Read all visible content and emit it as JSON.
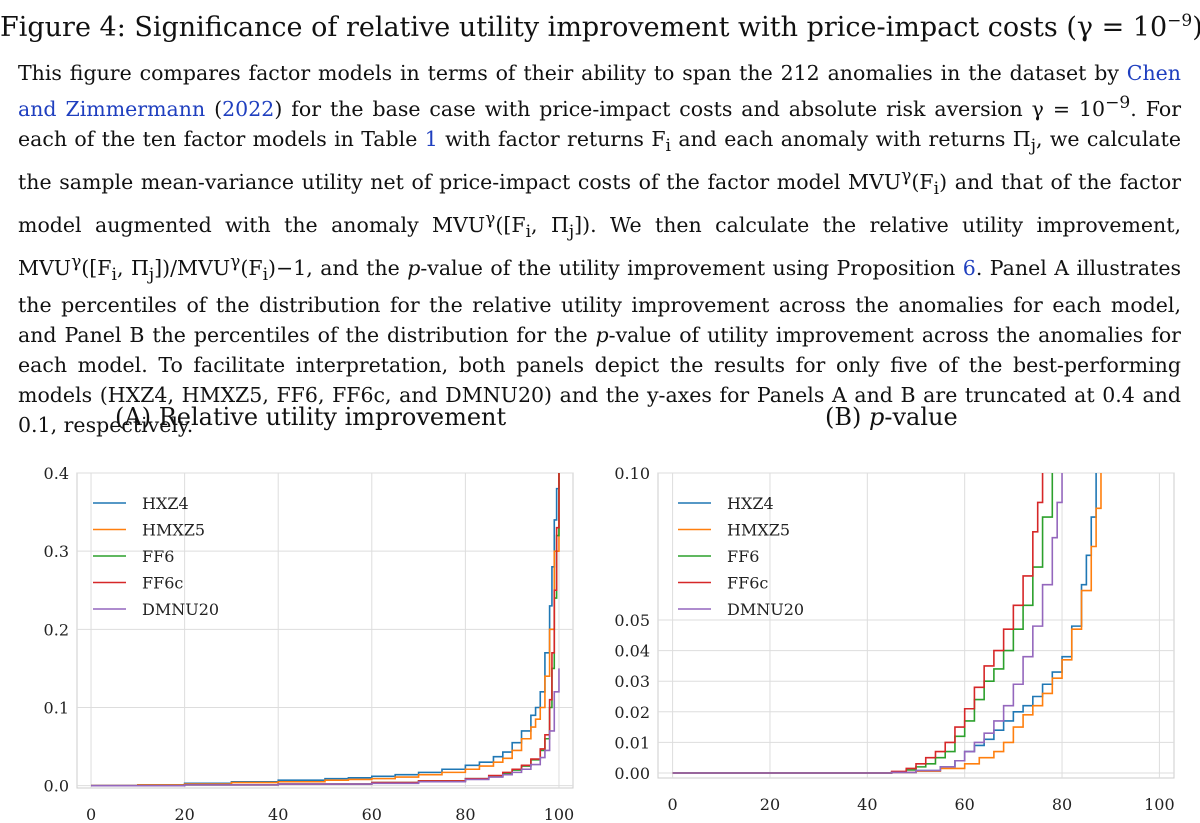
{
  "figure": {
    "title_prefix": "Figure 4: Significance of relative utility improvement with price-impact costs (γ = 10",
    "title_exp": "−9",
    "title_suffix": ")"
  },
  "caption": {
    "p1": "This figure compares factor models in terms of their ability to span the 212 anomalies in the dataset by ",
    "link_authors": "Chen and Zimmermann",
    "p2": " (",
    "link_year": "2022",
    "p3": ") for the base case with price-impact costs and absolute risk aversion γ = 10",
    "exp": "−9",
    "p4": ". For each of the ten factor models in Table ",
    "link_table": "1",
    "p5": " with factor returns F",
    "p6": " and each anomaly with returns Π",
    "p7": ", we calculate the sample mean-variance utility net of price-impact costs of the factor model MVU",
    "p8": "(F",
    "p9": ") and that of the factor model augmented with the anomaly MVU",
    "p10": "([F",
    "p11": ", Π",
    "p12": "]). We then calculate the relative utility improvement, MVU",
    "p13": "([F",
    "p14": ", Π",
    "p15": "])/MVU",
    "p16": "(F",
    "p17": ")−1, and the ",
    "p_italic": "p",
    "p18": "-value of the utility improvement using Proposition ",
    "link_prop": "6",
    "p19": ". Panel A illustrates the percentiles of the distribution for the relative utility improvement across the anomalies for each model, and Panel B the percentiles of the distribution for the ",
    "p_italic2": "p",
    "p20": "-value of utility improvement across the anomalies for each model. To facilitate interpretation, both panels depict the results for only five of the best-performing models (HXZ4, HMXZ5, FF6, FF6c, and DMNU20) and the y-axes for Panels A and B are truncated at 0.4 and 0.1, respectively.",
    "gamma_sup": "γ",
    "sub_i": "i",
    "sub_j": "j"
  },
  "panels": {
    "a_title": "(A) Relative utility improvement",
    "b_title_prefix": "(B) ",
    "b_title_p": "p",
    "b_title_suffix": "-value"
  },
  "chart_data": [
    {
      "type": "line",
      "panel": "A",
      "xlim": [
        -3,
        103
      ],
      "ylim": [
        -0.003,
        0.4
      ],
      "xticks": [
        0,
        20,
        40,
        60,
        80,
        100
      ],
      "yticks": [
        0.0,
        0.1,
        0.2,
        0.3,
        0.4
      ],
      "ytick_labels": [
        "0.0",
        "0.1",
        "0.2",
        "0.3",
        "0.4"
      ],
      "grid": true,
      "legend": "top-left",
      "series": [
        {
          "name": "HXZ4",
          "color": "#1f77b4",
          "x": [
            0,
            10,
            20,
            30,
            40,
            50,
            55,
            60,
            65,
            70,
            75,
            80,
            83,
            86,
            88,
            90,
            92,
            94,
            95,
            96,
            97,
            98,
            98.5,
            99,
            99.5,
            100
          ],
          "y": [
            0,
            0.001,
            0.003,
            0.005,
            0.007,
            0.009,
            0.01,
            0.012,
            0.014,
            0.017,
            0.021,
            0.026,
            0.03,
            0.037,
            0.043,
            0.055,
            0.07,
            0.09,
            0.1,
            0.12,
            0.17,
            0.23,
            0.28,
            0.34,
            0.38,
            0.4
          ]
        },
        {
          "name": "HMXZ5",
          "color": "#ff7f0e",
          "x": [
            0,
            10,
            20,
            30,
            40,
            50,
            55,
            60,
            65,
            70,
            75,
            80,
            83,
            86,
            88,
            90,
            92,
            94,
            95,
            96,
            97,
            98,
            99,
            100
          ],
          "y": [
            0,
            0.001,
            0.002,
            0.004,
            0.005,
            0.007,
            0.008,
            0.009,
            0.011,
            0.014,
            0.017,
            0.021,
            0.025,
            0.03,
            0.035,
            0.045,
            0.06,
            0.075,
            0.085,
            0.1,
            0.14,
            0.2,
            0.3,
            0.4
          ]
        },
        {
          "name": "FF6",
          "color": "#2ca02c",
          "x": [
            0,
            20,
            40,
            60,
            70,
            80,
            85,
            88,
            90,
            92,
            94,
            96,
            97,
            98,
            98.5,
            99,
            99.5,
            100
          ],
          "y": [
            0,
            0.001,
            0.002,
            0.004,
            0.006,
            0.009,
            0.012,
            0.016,
            0.02,
            0.025,
            0.033,
            0.045,
            0.06,
            0.1,
            0.15,
            0.24,
            0.32,
            0.4
          ]
        },
        {
          "name": "FF6c",
          "color": "#d62728",
          "x": [
            0,
            20,
            40,
            60,
            70,
            80,
            85,
            88,
            90,
            92,
            94,
            96,
            97,
            98,
            98.5,
            99,
            99.5,
            100
          ],
          "y": [
            0,
            0.001,
            0.002,
            0.004,
            0.006,
            0.009,
            0.013,
            0.017,
            0.021,
            0.026,
            0.034,
            0.047,
            0.065,
            0.11,
            0.17,
            0.25,
            0.33,
            0.4
          ]
        },
        {
          "name": "DMNU20",
          "color": "#9467bd",
          "x": [
            0,
            20,
            40,
            60,
            70,
            80,
            85,
            88,
            90,
            92,
            94,
            96,
            97,
            98,
            99,
            100
          ],
          "y": [
            0,
            0.001,
            0.002,
            0.003,
            0.005,
            0.008,
            0.011,
            0.014,
            0.017,
            0.021,
            0.027,
            0.036,
            0.045,
            0.07,
            0.12,
            0.15
          ]
        }
      ]
    },
    {
      "type": "line",
      "panel": "B",
      "xlim": [
        -3,
        103
      ],
      "ylim": [
        -0.001,
        0.1
      ],
      "xticks": [
        0,
        20,
        40,
        60,
        80,
        100
      ],
      "yticks": [
        0.0,
        0.01,
        0.02,
        0.03,
        0.04,
        0.05,
        0.1
      ],
      "ytick_labels": [
        "0.00",
        "0.01",
        "0.02",
        "0.03",
        "0.04",
        "0.05",
        "0.10"
      ],
      "y_scale": "piecewise-linear: 0–0.05 and 0.05–0.10 each span half the axis",
      "grid": true,
      "legend": "top-center",
      "series": [
        {
          "name": "HXZ4",
          "color": "#1f77b4",
          "x": [
            0,
            30,
            40,
            45,
            50,
            55,
            58,
            60,
            62,
            64,
            66,
            68,
            70,
            72,
            74,
            76,
            78,
            80,
            82,
            84,
            85,
            86,
            87
          ],
          "y": [
            0,
            0,
            0,
            0.0002,
            0.0008,
            0.002,
            0.004,
            0.007,
            0.009,
            0.011,
            0.014,
            0.017,
            0.02,
            0.022,
            0.025,
            0.029,
            0.033,
            0.038,
            0.048,
            0.062,
            0.072,
            0.085,
            0.1
          ]
        },
        {
          "name": "HMXZ5",
          "color": "#ff7f0e",
          "x": [
            0,
            30,
            40,
            45,
            50,
            55,
            60,
            63,
            66,
            68,
            70,
            72,
            74,
            76,
            78,
            80,
            82,
            84,
            86,
            87,
            88
          ],
          "y": [
            0,
            0,
            0,
            0.0002,
            0.0006,
            0.0015,
            0.003,
            0.005,
            0.007,
            0.01,
            0.015,
            0.019,
            0.022,
            0.026,
            0.031,
            0.037,
            0.047,
            0.06,
            0.075,
            0.088,
            0.1
          ]
        },
        {
          "name": "FF6",
          "color": "#2ca02c",
          "x": [
            0,
            30,
            40,
            45,
            48,
            50,
            52,
            54,
            56,
            58,
            60,
            62,
            64,
            66,
            68,
            70,
            72,
            74,
            76,
            78
          ],
          "y": [
            0,
            0,
            0,
            0.0003,
            0.001,
            0.002,
            0.003,
            0.005,
            0.007,
            0.012,
            0.017,
            0.024,
            0.03,
            0.034,
            0.04,
            0.047,
            0.055,
            0.068,
            0.085,
            0.1
          ]
        },
        {
          "name": "FF6c",
          "color": "#d62728",
          "x": [
            0,
            30,
            40,
            45,
            48,
            50,
            52,
            54,
            56,
            58,
            60,
            62,
            64,
            66,
            68,
            70,
            72,
            74,
            75,
            76
          ],
          "y": [
            0,
            0,
            0,
            0.0005,
            0.0015,
            0.003,
            0.005,
            0.007,
            0.01,
            0.015,
            0.021,
            0.028,
            0.035,
            0.04,
            0.047,
            0.055,
            0.065,
            0.08,
            0.09,
            0.1
          ]
        },
        {
          "name": "DMNU20",
          "color": "#9467bd",
          "x": [
            0,
            30,
            40,
            45,
            50,
            55,
            58,
            60,
            62,
            64,
            66,
            68,
            70,
            72,
            74,
            76,
            78,
            79,
            80
          ],
          "y": [
            0,
            0,
            0,
            0.0002,
            0.0008,
            0.002,
            0.004,
            0.007,
            0.01,
            0.013,
            0.017,
            0.022,
            0.029,
            0.038,
            0.048,
            0.062,
            0.078,
            0.09,
            0.1
          ]
        }
      ]
    }
  ]
}
